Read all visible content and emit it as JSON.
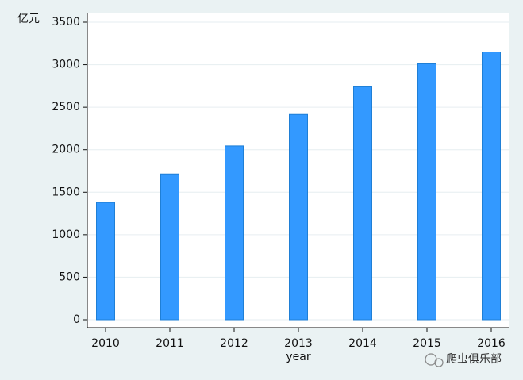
{
  "chart_data": {
    "type": "bar",
    "y_label": "亿元",
    "x_label": "year",
    "watermark": "爬虫俱乐部",
    "categories": [
      "2010",
      "2011",
      "2012",
      "2013",
      "2014",
      "2015",
      "2016"
    ],
    "values": [
      1380,
      1715,
      2045,
      2415,
      2740,
      3010,
      3150
    ],
    "color": "#3399ff",
    "edge_color": "#1f7fd6",
    "ylim": [
      0,
      3500
    ],
    "yticks": [
      0,
      500,
      1000,
      1500,
      2000,
      2500,
      3000,
      3500
    ],
    "grid": true
  }
}
